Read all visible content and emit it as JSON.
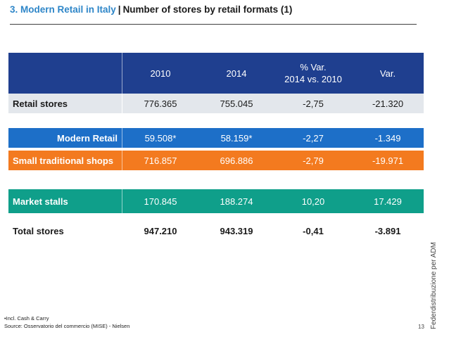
{
  "title": {
    "accent": "3. Modern Retail in Italy",
    "separator": "|",
    "rest": "Number of stores by retail formats (1)"
  },
  "table": {
    "headers": {
      "col1": "2010",
      "col2": "2014",
      "col3_line1": "% Var.",
      "col3_line2": "2014 vs. 2010",
      "col4": "Var."
    },
    "rows": [
      {
        "label": "Retail stores",
        "v2010": "776.365",
        "v2014": "755.045",
        "pct": "-2,75",
        "var": "-21.320"
      },
      {
        "label": "Modern Retail",
        "v2010": "59.508*",
        "v2014": "58.159*",
        "pct": "-2,27",
        "var": "-1.349"
      },
      {
        "label": "Small traditional shops",
        "v2010": "716.857",
        "v2014": "696.886",
        "pct": "-2,79",
        "var": "-19.971"
      },
      {
        "label": "Market stalls",
        "v2010": "170.845",
        "v2014": "188.274",
        "pct": "10,20",
        "var": "17.429"
      },
      {
        "label": "Total stores",
        "v2010": "947.210",
        "v2014": "943.319",
        "pct": "-0,41",
        "var": "-3.891"
      }
    ],
    "colors": {
      "header": "#1f3f8f",
      "retail": "#e3e7ec",
      "modern": "#1d6fc8",
      "small": "#f37a1f",
      "market": "#0f9f8a"
    }
  },
  "side_credit": "Federdistribuzione per ADM",
  "footnote": "•Incl. Cash & Carry",
  "source": "Source: Osservatorio del commercio (MISE) - Nielsen",
  "page_number": "13"
}
